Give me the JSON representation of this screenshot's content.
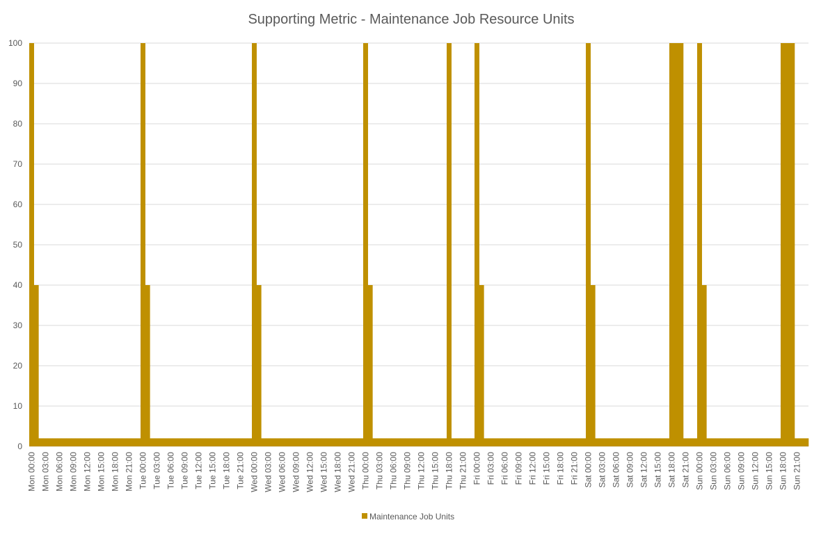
{
  "chart_data": {
    "type": "bar",
    "title": "Supporting Metric - Maintenance Job Resource Units",
    "xlabel": "",
    "ylabel": "",
    "ylim": [
      0,
      100
    ],
    "yticks": [
      0,
      10,
      20,
      30,
      40,
      50,
      60,
      70,
      80,
      90,
      100
    ],
    "grid": true,
    "legend_position": "bottom",
    "series_color": "#BF9000",
    "series": [
      {
        "name": "Maintenance Job Units",
        "values": [
          100,
          40,
          2,
          2,
          2,
          2,
          2,
          2,
          2,
          2,
          2,
          2,
          2,
          2,
          2,
          2,
          2,
          2,
          2,
          2,
          2,
          2,
          2,
          2,
          100,
          40,
          2,
          2,
          2,
          2,
          2,
          2,
          2,
          2,
          2,
          2,
          2,
          2,
          2,
          2,
          2,
          2,
          2,
          2,
          2,
          2,
          2,
          2,
          100,
          40,
          2,
          2,
          2,
          2,
          2,
          2,
          2,
          2,
          2,
          2,
          2,
          2,
          2,
          2,
          2,
          2,
          2,
          2,
          2,
          2,
          2,
          2,
          100,
          40,
          2,
          2,
          2,
          2,
          2,
          2,
          2,
          2,
          2,
          2,
          2,
          2,
          2,
          2,
          2,
          2,
          100,
          2,
          2,
          2,
          2,
          2,
          100,
          40,
          2,
          2,
          2,
          2,
          2,
          2,
          2,
          2,
          2,
          2,
          2,
          2,
          2,
          2,
          2,
          2,
          2,
          2,
          2,
          2,
          2,
          2,
          100,
          40,
          2,
          2,
          2,
          2,
          2,
          2,
          2,
          2,
          2,
          2,
          2,
          2,
          2,
          2,
          2,
          2,
          100,
          100,
          100,
          2,
          2,
          2,
          100,
          40,
          2,
          2,
          2,
          2,
          2,
          2,
          2,
          2,
          2,
          2,
          2,
          2,
          2,
          2,
          2,
          2,
          100,
          100,
          100,
          2,
          2,
          2
        ]
      }
    ],
    "tick_labels": [
      "Mon 00:00",
      "Mon 03:00",
      "Mon 06:00",
      "Mon 09:00",
      "Mon 12:00",
      "Mon 15:00",
      "Mon 18:00",
      "Mon 21:00",
      "Tue 00:00",
      "Tue 03:00",
      "Tue 06:00",
      "Tue 09:00",
      "Tue 12:00",
      "Tue 15:00",
      "Tue 18:00",
      "Tue 21:00",
      "Wed 00:00",
      "Wed 03:00",
      "Wed 06:00",
      "Wed 09:00",
      "Wed 12:00",
      "Wed 15:00",
      "Wed 18:00",
      "Wed 21:00",
      "Thu 00:00",
      "Thu 03:00",
      "Thu 06:00",
      "Thu 09:00",
      "Thu 12:00",
      "Thu 15:00",
      "Thu 18:00",
      "Thu 21:00",
      "Fri 00:00",
      "Fri 03:00",
      "Fri 06:00",
      "Fri 09:00",
      "Fri 12:00",
      "Fri 15:00",
      "Fri 18:00",
      "Fri 21:00",
      "Sat 00:00",
      "Sat 03:00",
      "Sat 06:00",
      "Sat 09:00",
      "Sat 12:00",
      "Sat 15:00",
      "Sat 18:00",
      "Sat 21:00",
      "Sun 00:00",
      "Sun 03:00",
      "Sun 06:00",
      "Sun 09:00",
      "Sun 12:00",
      "Sun 15:00",
      "Sun 18:00",
      "Sun 21:00"
    ]
  }
}
